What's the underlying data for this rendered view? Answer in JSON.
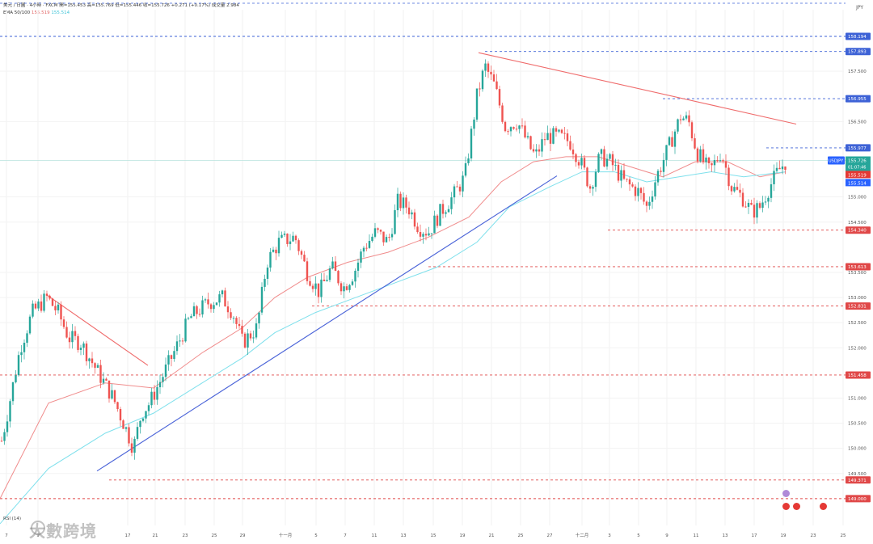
{
  "header": {
    "line1": "美元 / 日圓 · 4小時 · FXCM  開=155.453  高=155.769  低=155.446  收=155.726  +0.271 (+0.17%)  成交量 2.984",
    "ema_label": "EMA 50/100",
    "ema_a": "155.519",
    "ema_b": "155.514"
  },
  "currency": "JPY",
  "rsi_label": "RSI (14)",
  "watermark": "大數跨境",
  "colors": {
    "up": "#26a69a",
    "down": "#ef5350",
    "ema_fast": "#f08c8c",
    "ema_slow": "#7fe0ec",
    "trend_down": "#ef6b6b",
    "trend_up": "#4a63d8",
    "level": "#e04848",
    "resist": "#3d62d6",
    "badge_blue": "#2962ff",
    "badge_red": "#e53935",
    "price_line": "#26a69a"
  },
  "chart_data": {
    "type": "candlestick",
    "symbol": "USDJPY",
    "ylim": [
      149.6,
      158.4
    ],
    "y_ticks": [
      "157.500",
      "156.500",
      "155.000",
      "154.500",
      "153.500",
      "153.000",
      "152.500",
      "152.000",
      "151.000",
      "150.500",
      "150.000",
      "149.500"
    ],
    "x_ticks": [
      "7",
      "9",
      "17",
      "21",
      "23",
      "25",
      "29",
      "十一月",
      "5",
      "7",
      "11",
      "13",
      "15",
      "19",
      "21",
      "25",
      "27",
      "十二月",
      "3",
      "5",
      "9",
      "11",
      "13",
      "17",
      "19",
      "23",
      "25"
    ],
    "levels_resistance": [
      158.194,
      157.893,
      156.955,
      155.977
    ],
    "levels_support": [
      154.34,
      153.613,
      152.831,
      151.458,
      149.371,
      149.0
    ],
    "current": {
      "symbol": "USDJPY",
      "price": "155.726",
      "countdown": "01:07:46",
      "ema_a": "155.519",
      "ema_b": "155.514"
    },
    "anchors": [
      [
        0,
        150.0
      ],
      [
        8,
        150.6
      ],
      [
        25,
        152.0
      ],
      [
        40,
        152.7
      ],
      [
        58,
        153.0
      ],
      [
        72,
        152.7
      ],
      [
        85,
        152.2
      ],
      [
        100,
        152.1
      ],
      [
        118,
        151.6
      ],
      [
        140,
        151.0
      ],
      [
        158,
        150.3
      ],
      [
        165,
        150.0
      ],
      [
        175,
        150.7
      ],
      [
        185,
        150.9
      ],
      [
        200,
        151.4
      ],
      [
        215,
        151.9
      ],
      [
        235,
        152.6
      ],
      [
        258,
        152.9
      ],
      [
        275,
        153.0
      ],
      [
        288,
        152.7
      ],
      [
        300,
        152.1
      ],
      [
        318,
        152.4
      ],
      [
        330,
        153.7
      ],
      [
        345,
        154.1
      ],
      [
        365,
        154.2
      ],
      [
        380,
        153.5
      ],
      [
        395,
        153.1
      ],
      [
        410,
        153.6
      ],
      [
        425,
        153.2
      ],
      [
        438,
        153.5
      ],
      [
        450,
        154.0
      ],
      [
        465,
        154.3
      ],
      [
        480,
        154.1
      ],
      [
        492,
        154.9
      ],
      [
        505,
        154.8
      ],
      [
        518,
        154.4
      ],
      [
        530,
        154.3
      ],
      [
        545,
        154.7
      ],
      [
        560,
        155.0
      ],
      [
        575,
        155.4
      ],
      [
        590,
        157.0
      ],
      [
        600,
        157.6
      ],
      [
        612,
        157.2
      ],
      [
        625,
        156.4
      ],
      [
        640,
        156.5
      ],
      [
        655,
        156.0
      ],
      [
        662,
        155.8
      ],
      [
        675,
        156.2
      ],
      [
        690,
        156.2
      ],
      [
        705,
        156.1
      ],
      [
        718,
        155.7
      ],
      [
        730,
        155.2
      ],
      [
        742,
        155.8
      ],
      [
        755,
        155.7
      ],
      [
        772,
        155.3
      ],
      [
        790,
        155.1
      ],
      [
        800,
        154.8
      ],
      [
        812,
        155.4
      ],
      [
        825,
        155.9
      ],
      [
        842,
        156.6
      ],
      [
        852,
        156.5
      ],
      [
        862,
        155.9
      ],
      [
        878,
        155.5
      ],
      [
        892,
        155.9
      ],
      [
        905,
        155.2
      ],
      [
        918,
        155.0
      ],
      [
        930,
        154.7
      ],
      [
        940,
        154.8
      ],
      [
        952,
        155.2
      ],
      [
        962,
        155.5
      ],
      [
        972,
        155.7
      ]
    ],
    "ema_fast": [
      [
        0,
        149.0
      ],
      [
        60,
        150.9
      ],
      [
        130,
        151.3
      ],
      [
        190,
        151.2
      ],
      [
        250,
        151.9
      ],
      [
        300,
        152.4
      ],
      [
        340,
        153.0
      ],
      [
        380,
        153.4
      ],
      [
        430,
        153.7
      ],
      [
        480,
        153.9
      ],
      [
        530,
        154.2
      ],
      [
        580,
        154.6
      ],
      [
        620,
        155.3
      ],
      [
        660,
        155.7
      ],
      [
        700,
        155.8
      ],
      [
        740,
        155.8
      ],
      [
        780,
        155.6
      ],
      [
        820,
        155.4
      ],
      [
        860,
        155.7
      ],
      [
        900,
        155.7
      ],
      [
        940,
        155.4
      ],
      [
        972,
        155.5
      ]
    ],
    "ema_slow": [
      [
        0,
        148.5
      ],
      [
        60,
        149.6
      ],
      [
        130,
        150.3
      ],
      [
        190,
        150.7
      ],
      [
        250,
        151.3
      ],
      [
        300,
        151.8
      ],
      [
        340,
        152.3
      ],
      [
        390,
        152.7
      ],
      [
        440,
        153.0
      ],
      [
        490,
        153.3
      ],
      [
        540,
        153.6
      ],
      [
        590,
        154.1
      ],
      [
        630,
        154.8
      ],
      [
        680,
        155.2
      ],
      [
        720,
        155.5
      ],
      [
        760,
        155.5
      ],
      [
        800,
        155.3
      ],
      [
        840,
        155.4
      ],
      [
        880,
        155.5
      ],
      [
        920,
        155.4
      ],
      [
        972,
        155.5
      ]
    ],
    "trend_down_left": [
      [
        58,
        153.05
      ],
      [
        183,
        151.65
      ]
    ],
    "trend_up": [
      [
        120,
        149.55
      ],
      [
        689,
        155.42
      ]
    ],
    "trend_down_right": [
      [
        592,
        157.87
      ],
      [
        985,
        156.45
      ]
    ]
  }
}
